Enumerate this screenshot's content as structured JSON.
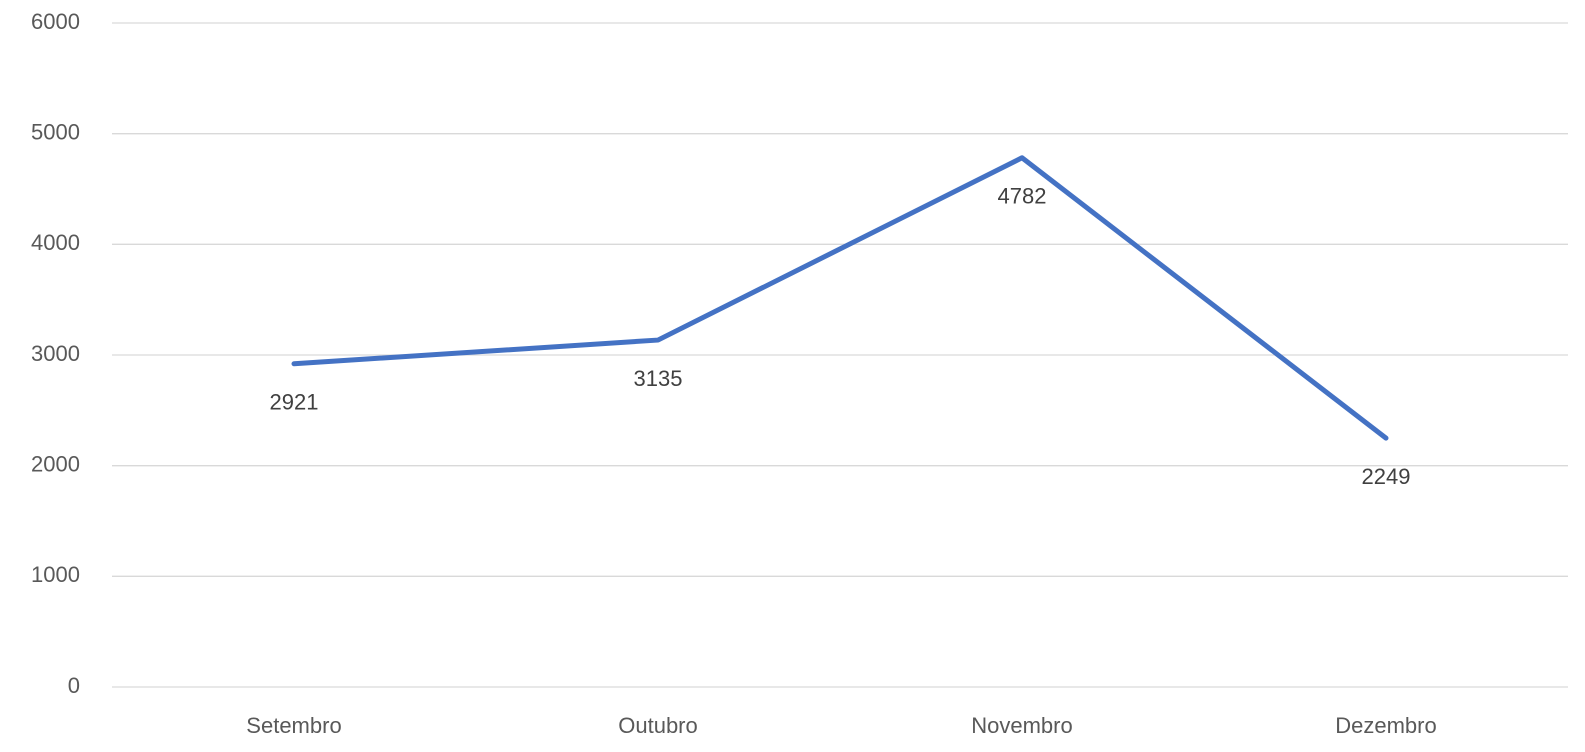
{
  "chart_data": {
    "type": "line",
    "categories": [
      "Setembro",
      "Outubro",
      "Novembro",
      "Dezembro"
    ],
    "values": [
      2921,
      3135,
      4782,
      2249
    ],
    "color": "#4472c4",
    "ylim": [
      0,
      6000
    ],
    "yticks": [
      0,
      1000,
      2000,
      3000,
      4000,
      5000,
      6000
    ],
    "grid": true
  }
}
